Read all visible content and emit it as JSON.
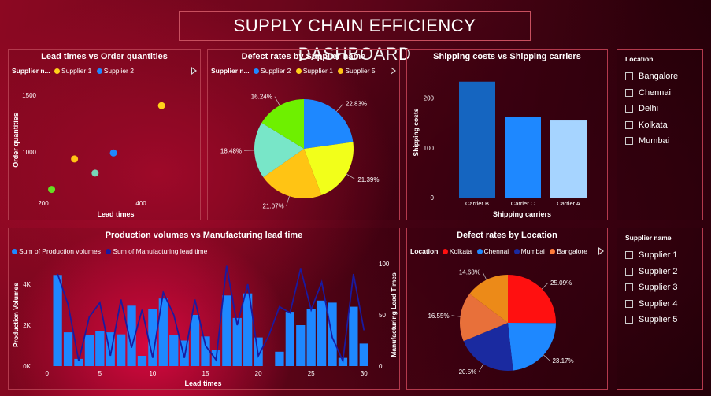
{
  "dashboard_title": "SUPPLY CHAIN EFFICIENCY DASHBOARD",
  "location_slicer": {
    "title": "Location",
    "options": [
      "Bangalore",
      "Chennai",
      "Delhi",
      "Kolkata",
      "Mumbai"
    ]
  },
  "supplier_slicer": {
    "title": "Supplier name",
    "options": [
      "Supplier 1",
      "Supplier 2",
      "Supplier 3",
      "Supplier 4",
      "Supplier 5"
    ]
  },
  "chart_data": [
    {
      "type": "scatter",
      "title": "Lead times vs Order quantities",
      "xlabel": "Lead times",
      "ylabel": "Order quantities",
      "legend_title": "Supplier n...",
      "legend": [
        {
          "name": "Supplier 1",
          "color": "#ffd21a"
        },
        {
          "name": "Supplier 2",
          "color": "#1e88ff"
        }
      ],
      "x_ticks": [
        "200",
        "400"
      ],
      "y_ticks": [
        "1000",
        "1500"
      ],
      "xlim": [
        190,
        520
      ],
      "ylim": [
        600,
        1650
      ],
      "points": [
        {
          "x": 215,
          "y": 690,
          "color": "#66dd22"
        },
        {
          "x": 265,
          "y": 970,
          "color": "#ffc414"
        },
        {
          "x": 310,
          "y": 840,
          "color": "#78d6b8"
        },
        {
          "x": 350,
          "y": 1025,
          "color": "#1e88ff"
        },
        {
          "x": 455,
          "y": 1460,
          "color": "#ffd21a"
        }
      ]
    },
    {
      "type": "pie",
      "title": "Defect rates by Supplier name",
      "legend_title": "Supplier n...",
      "legend": [
        {
          "name": "Supplier 2",
          "color": "#1e88ff"
        },
        {
          "name": "Supplier 1",
          "color": "#ffd21a"
        },
        {
          "name": "Supplier 5",
          "color": "#ffc414"
        }
      ],
      "slices": [
        {
          "value": 22.83,
          "label": "22.83%",
          "color": "#1e88ff"
        },
        {
          "value": 21.39,
          "label": "21.39%",
          "color": "#f2ff1a"
        },
        {
          "value": 21.07,
          "label": "21.07%",
          "color": "#ffc414"
        },
        {
          "value": 18.48,
          "label": "18.48%",
          "color": "#78e6c8"
        },
        {
          "value": 16.24,
          "label": "16.24%",
          "color": "#6ef000"
        }
      ]
    },
    {
      "type": "bar",
      "title": "Shipping costs vs Shipping carriers",
      "xlabel": "Shipping carriers",
      "ylabel": "Shipping costs",
      "categories": [
        "Carrier B",
        "Carrier C",
        "Carrier A"
      ],
      "values": [
        233,
        162,
        155
      ],
      "colors": [
        "#1565c0",
        "#1e88ff",
        "#a6d4ff"
      ],
      "y_ticks": [
        "0",
        "100",
        "200"
      ],
      "ylim": [
        0,
        250
      ]
    },
    {
      "type": "bar",
      "title": "Production volumes vs Manufacturing lead time",
      "xlabel": "Lead times",
      "ylabel": "Production Volumes",
      "y2label": "Manufacturing Lead Times",
      "legend": [
        {
          "name": "Sum of Production volumes",
          "color": "#1e88ff"
        },
        {
          "name": "Sum of Manufacturing lead time",
          "color": "#1a1aa0"
        }
      ],
      "x_ticks": [
        "0",
        "5",
        "10",
        "15",
        "20",
        "25",
        "30"
      ],
      "y_ticks": [
        "0K",
        "2K",
        "4K"
      ],
      "y2_ticks": [
        "0",
        "50",
        "100"
      ],
      "ylim": [
        0,
        5000
      ],
      "y2lim": [
        0,
        100
      ],
      "x": [
        1,
        2,
        3,
        4,
        5,
        6,
        7,
        8,
        9,
        10,
        11,
        12,
        13,
        14,
        15,
        16,
        17,
        18,
        19,
        20,
        21,
        22,
        23,
        24,
        25,
        26,
        27,
        28,
        29,
        30
      ],
      "production_volumes": [
        4450,
        1650,
        350,
        1500,
        1700,
        1650,
        1550,
        2950,
        500,
        2800,
        3300,
        1500,
        1250,
        2500,
        1450,
        800,
        3450,
        2350,
        3550,
        1400,
        0,
        700,
        2650,
        2000,
        2800,
        3200,
        3100,
        400,
        2900,
        1100
      ],
      "manufacturing_lead_times": [
        90,
        60,
        5,
        48,
        62,
        10,
        65,
        18,
        55,
        8,
        72,
        50,
        8,
        65,
        20,
        6,
        98,
        40,
        80,
        10,
        30,
        58,
        52,
        95,
        55,
        82,
        28,
        5,
        90,
        35
      ]
    },
    {
      "type": "pie",
      "title": "Defect rates by Location",
      "legend_title": "Location",
      "legend": [
        {
          "name": "Kolkata",
          "color": "#ff1010"
        },
        {
          "name": "Chennai",
          "color": "#1e88ff"
        },
        {
          "name": "Mumbai",
          "color": "#1a2aa0"
        },
        {
          "name": "Bangalore",
          "color": "#ff7a3a"
        }
      ],
      "slices": [
        {
          "value": 25.09,
          "label": "25.09%",
          "color": "#ff1010"
        },
        {
          "value": 23.17,
          "label": "23.17%",
          "color": "#1e88ff"
        },
        {
          "value": 20.5,
          "label": "20.5%",
          "color": "#1a2aa0"
        },
        {
          "value": 16.55,
          "label": "16.55%",
          "color": "#e8703a"
        },
        {
          "value": 14.68,
          "label": "14.68%",
          "color": "#ec8a18"
        }
      ]
    }
  ]
}
